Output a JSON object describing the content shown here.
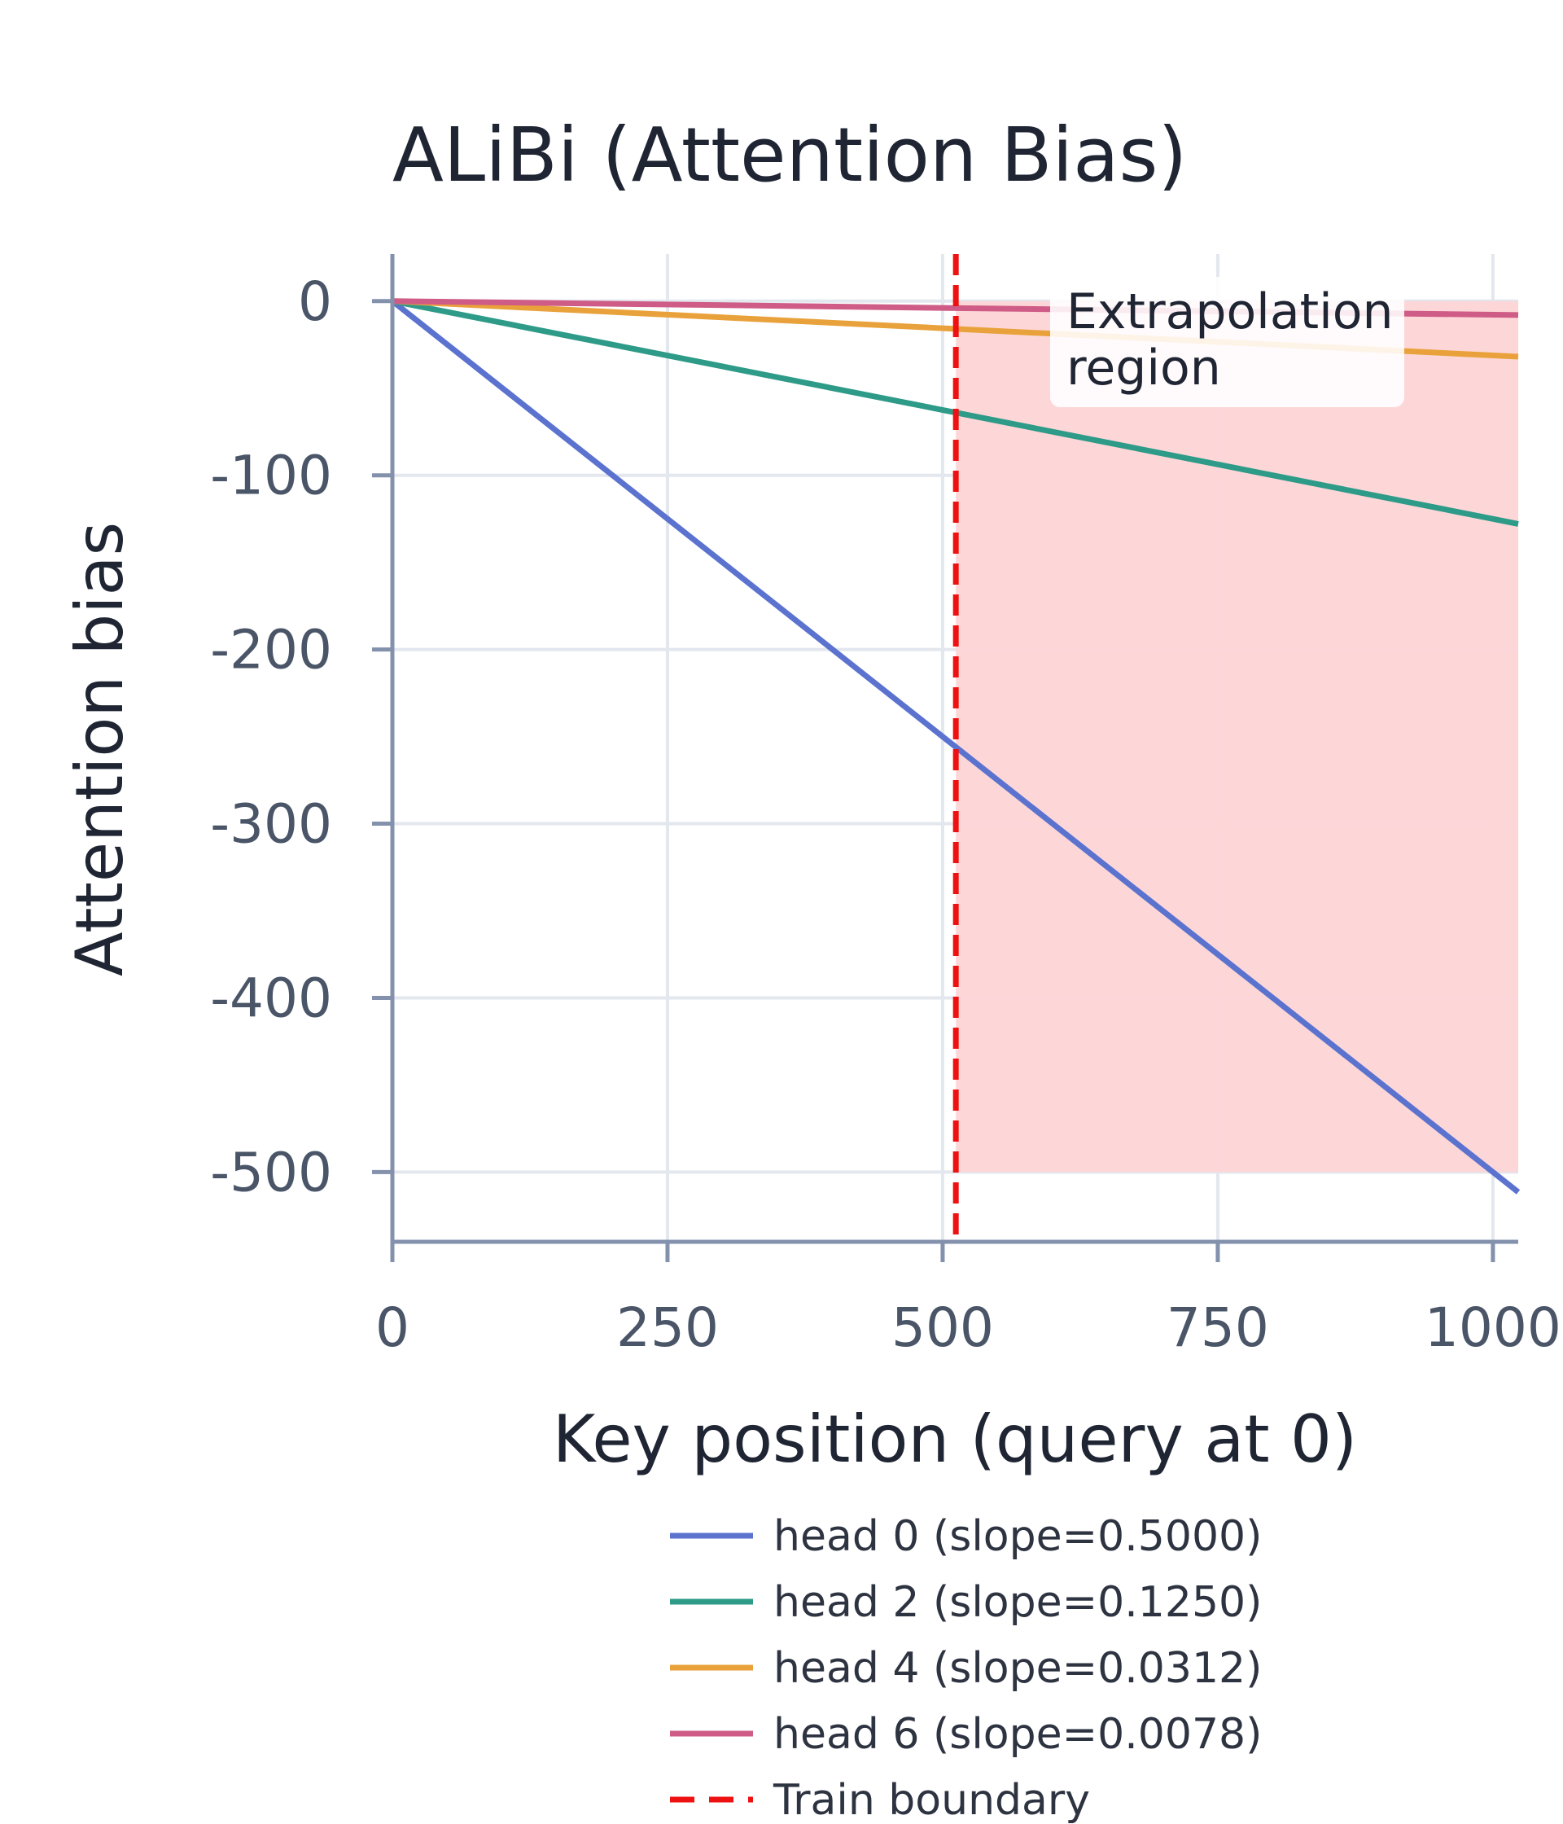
{
  "chart_data": {
    "type": "line",
    "title": "ALiBi (Attention Bias)",
    "xlabel": "Key position (query at 0)",
    "ylabel": "Attention bias",
    "xlim": [
      0,
      1023
    ],
    "ylim": [
      -540,
      27
    ],
    "x_ticks": [
      {
        "value": 0,
        "label": "0"
      },
      {
        "value": 250,
        "label": "250"
      },
      {
        "value": 500,
        "label": "500"
      },
      {
        "value": 750,
        "label": "750"
      },
      {
        "value": 1000,
        "label": "1000"
      }
    ],
    "y_ticks": [
      {
        "value": 0,
        "label": "0"
      },
      {
        "value": -100,
        "label": "-100"
      },
      {
        "value": -200,
        "label": "-200"
      },
      {
        "value": -300,
        "label": "-300"
      },
      {
        "value": -400,
        "label": "-400"
      },
      {
        "value": -500,
        "label": "-500"
      }
    ],
    "grid": true,
    "legend_position": "bottom",
    "series": [
      {
        "name": "head 0 (slope=0.5000)",
        "slope": 0.5,
        "x": [
          0,
          1023
        ],
        "y": [
          0,
          -511.5
        ],
        "color": "#5b73cf"
      },
      {
        "name": "head 2 (slope=0.1250)",
        "slope": 0.125,
        "x": [
          0,
          1023
        ],
        "y": [
          0,
          -127.9
        ],
        "color": "#2e9a88"
      },
      {
        "name": "head 4 (slope=0.0312)",
        "slope": 0.0312,
        "x": [
          0,
          1023
        ],
        "y": [
          0,
          -31.9
        ],
        "color": "#e9a23b"
      },
      {
        "name": "head 6 (slope=0.0078)",
        "slope": 0.0078,
        "x": [
          0,
          1023
        ],
        "y": [
          0,
          -8.0
        ],
        "color": "#cf5c86"
      }
    ],
    "train_boundary": {
      "name": "Train boundary",
      "x": 512,
      "color": "#ee1111"
    },
    "extrapolation_region": {
      "x": [
        512,
        1023
      ],
      "y": [
        -500,
        0
      ],
      "color": "#fdd5d6"
    },
    "annotation": {
      "lines": [
        "Extrapolation",
        "region"
      ]
    }
  }
}
